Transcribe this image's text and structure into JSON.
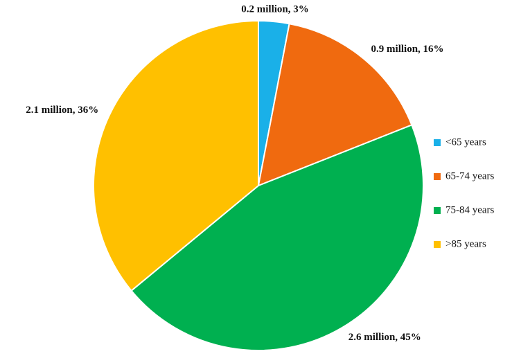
{
  "chart_data": {
    "type": "pie",
    "categories": [
      "<65 years",
      "65-74 years",
      "75-84 years",
      ">85 years"
    ],
    "values": [
      3,
      16,
      45,
      36
    ],
    "value_labels": [
      "0.2 million, 3%",
      "0.9 million, 16%",
      "2.6 million, 45%",
      "2.1 million, 36%"
    ],
    "colors": [
      "#1ab0e8",
      "#f06a0f",
      "#00b050",
      "#ffc000"
    ],
    "legend": "right"
  }
}
